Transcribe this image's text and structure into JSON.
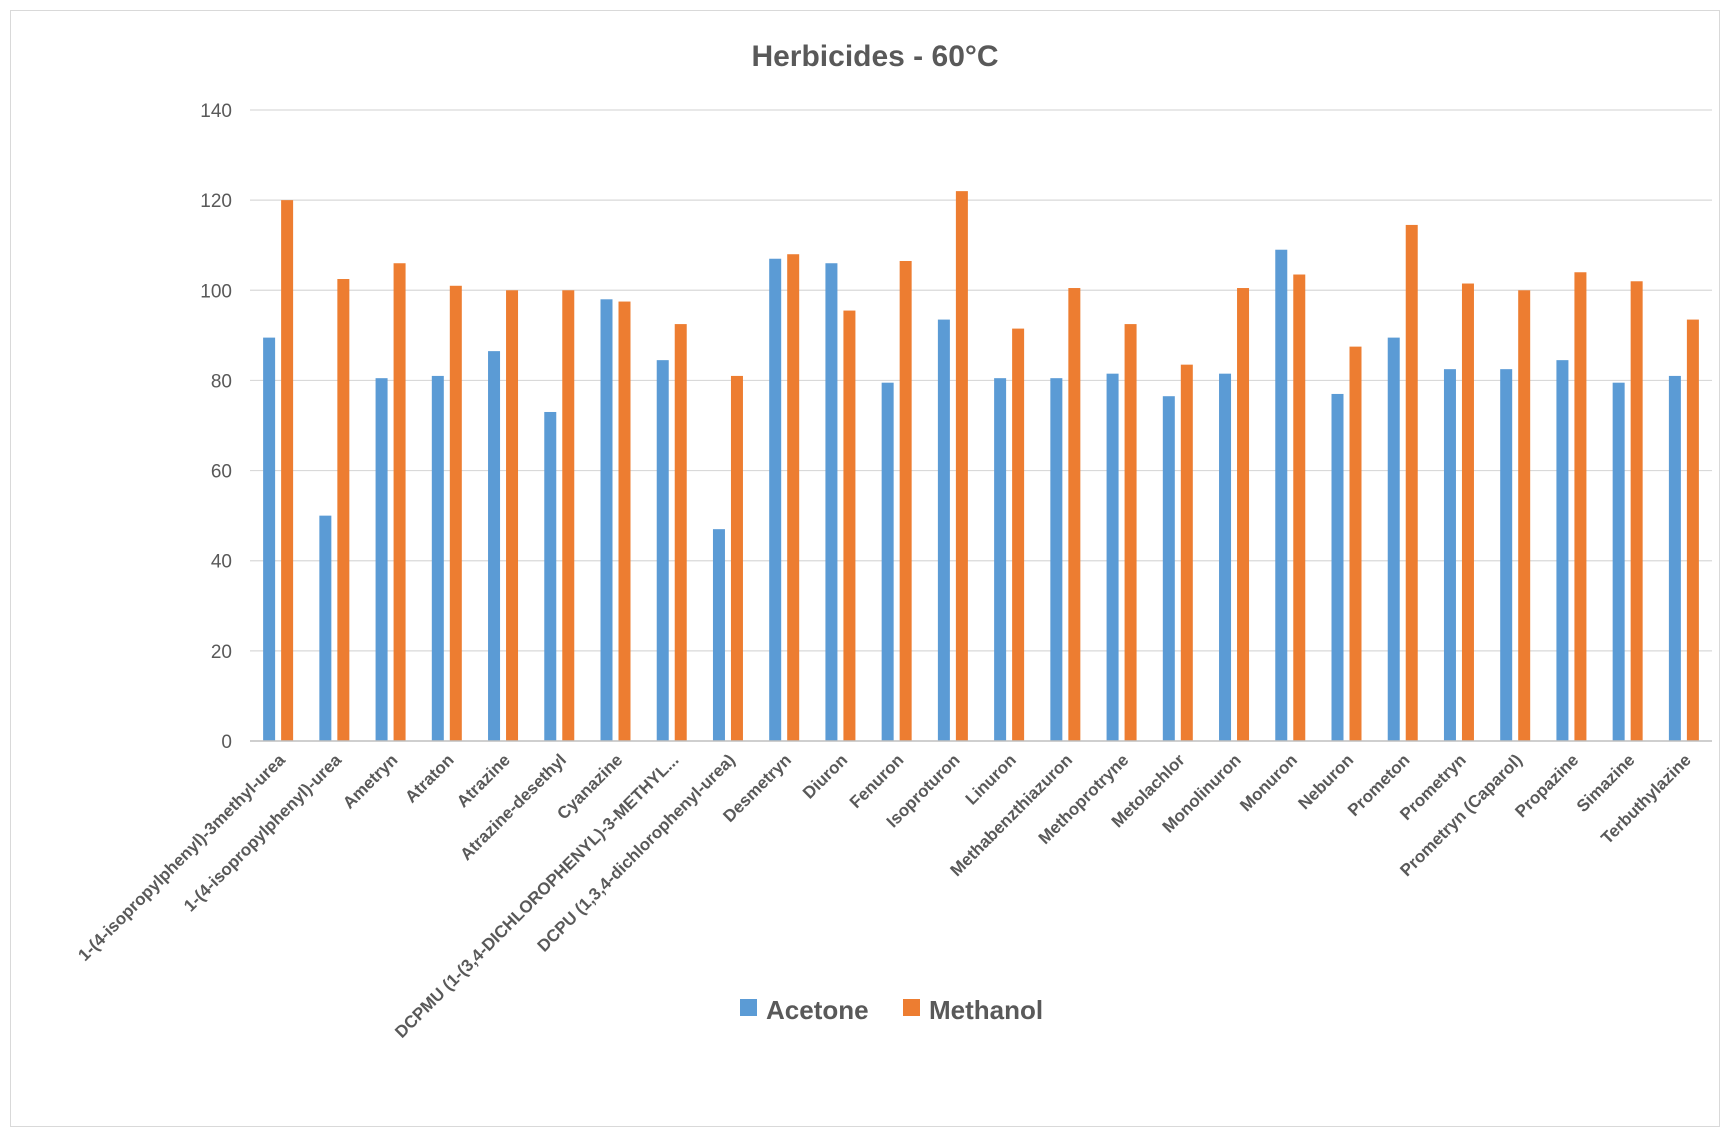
{
  "chart_data": {
    "type": "bar",
    "title": "Herbicides - 60°C",
    "xlabel": "",
    "ylabel": "",
    "ylim": [
      0,
      140
    ],
    "yticks": [
      0,
      20,
      40,
      60,
      80,
      100,
      120,
      140
    ],
    "grid": true,
    "legend_position": "bottom",
    "categories": [
      "1-(4-isopropylphenyl)-3methyl-urea",
      "1-(4-isopropylphenyl)-urea",
      "Ametryn",
      "Atraton",
      "Atrazine",
      "Atrazine-desethyl",
      "Cyanazine",
      "DCPMU (1-(3,4-DICHLOROPHENYL)-3-METHYL...",
      "DCPU (1,3,4-dichlorophenyl-urea)",
      "Desmetryn",
      "Diuron",
      "Fenuron",
      "Isoproturon",
      "Linuron",
      "Methabenzthiazuron",
      "Methoprotryne",
      "Metolachlor",
      "Monolinuron",
      "Monuron",
      "Neburon",
      "Prometon",
      "Prometryn",
      "Prometryn (Caparol)",
      "Propazine",
      "Simazine",
      "Terbuthylazine"
    ],
    "series": [
      {
        "name": "Acetone",
        "color": "#5b9bd5",
        "values": [
          89.5,
          50,
          80.5,
          81,
          86.5,
          73,
          98,
          84.5,
          47,
          107,
          106,
          79.5,
          93.5,
          80.5,
          80.5,
          81.5,
          76.5,
          81.5,
          109,
          77,
          89.5,
          82.5,
          82.5,
          84.5,
          79.5,
          81
        ]
      },
      {
        "name": "Methanol",
        "color": "#ed7d31",
        "values": [
          120,
          102.5,
          106,
          101,
          100,
          100,
          97.5,
          92.5,
          81,
          108,
          95.5,
          106.5,
          122,
          91.5,
          100.5,
          92.5,
          83.5,
          100.5,
          103.5,
          87.5,
          114.5,
          101.5,
          100,
          104,
          102,
          93.5
        ]
      }
    ]
  }
}
